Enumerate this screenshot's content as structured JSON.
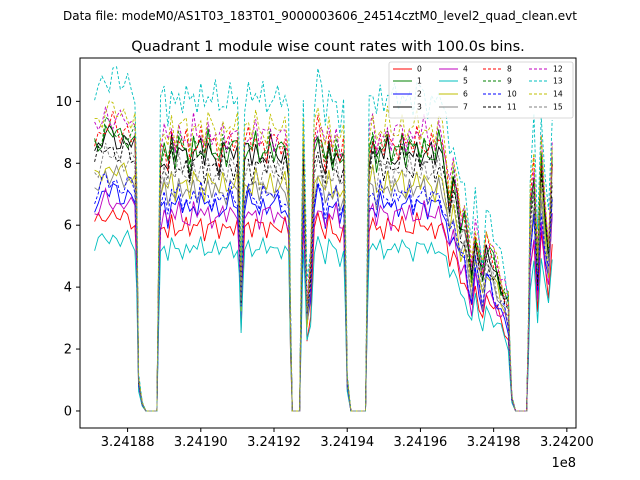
{
  "chart_data": {
    "type": "line",
    "suptitle": "Data file: modeM0/AS1T03_183T01_9000003606_24514cztM0_level2_quad_clean.evt",
    "title": "Quadrant 1 module wise count rates with 100.0s bins.",
    "xlabel": "",
    "ylabel": "",
    "x_offset_label": "1e8",
    "xlim": [
      3.241867,
      3.2420025
    ],
    "ylim": [
      -0.55,
      11.4
    ],
    "xticks": [
      3.24188,
      3.2419,
      3.24192,
      3.24194,
      3.24196,
      3.24198,
      3.242
    ],
    "xtick_labels": [
      "3.24188",
      "3.24190",
      "3.24192",
      "3.24194",
      "3.24196",
      "3.24198",
      "3.24200"
    ],
    "yticks": [
      0,
      2,
      4,
      6,
      8,
      10
    ],
    "ytick_labels": [
      "0",
      "2",
      "4",
      "6",
      "8",
      "10"
    ],
    "grid": false,
    "legend_position": "top-right",
    "legend_columns": 4,
    "series_styles": [
      {
        "name": "0",
        "color": "#ff0000",
        "dash": "solid",
        "amp": 0.58,
        "base": 6.0
      },
      {
        "name": "1",
        "color": "#008000",
        "dash": "solid",
        "amp": 0.82,
        "base": 8.5
      },
      {
        "name": "2",
        "color": "#0000ff",
        "dash": "solid",
        "amp": 0.66,
        "base": 6.7
      },
      {
        "name": "3",
        "color": "#000000",
        "dash": "solid",
        "amp": 0.8,
        "base": 8.4
      },
      {
        "name": "4",
        "color": "#bf00bf",
        "dash": "solid",
        "amp": 0.63,
        "base": 6.4
      },
      {
        "name": "5",
        "color": "#00bfbf",
        "dash": "solid",
        "amp": 0.5,
        "base": 5.3
      },
      {
        "name": "6",
        "color": "#bfbf00",
        "dash": "solid",
        "amp": 0.72,
        "base": 7.4
      },
      {
        "name": "7",
        "color": "#808080",
        "dash": "solid",
        "amp": 0.71,
        "base": 7.2
      },
      {
        "name": "8",
        "color": "#ff0000",
        "dash": "dashed",
        "amp": 0.84,
        "base": 8.7
      },
      {
        "name": "9",
        "color": "#008000",
        "dash": "dashed",
        "amp": 0.83,
        "base": 8.6
      },
      {
        "name": "10",
        "color": "#0000ff",
        "dash": "dashed",
        "amp": 0.67,
        "base": 7.0
      },
      {
        "name": "11",
        "color": "#000000",
        "dash": "dashed",
        "amp": 0.78,
        "base": 8.0
      },
      {
        "name": "12",
        "color": "#bf00bf",
        "dash": "dashed",
        "amp": 0.86,
        "base": 9.0
      },
      {
        "name": "13",
        "color": "#00bfbf",
        "dash": "dashed",
        "amp": 0.97,
        "base": 10.2
      },
      {
        "name": "14",
        "color": "#bfbf00",
        "dash": "dashed",
        "amp": 0.88,
        "base": 9.2
      },
      {
        "name": "15",
        "color": "#808080",
        "dash": "dashed",
        "amp": 0.75,
        "base": 7.8
      }
    ],
    "envelope_points": [
      [
        3.241871,
        1.0
      ],
      [
        3.241872,
        1.02
      ],
      [
        3.241873,
        1.04
      ],
      [
        3.241874,
        1.07
      ],
      [
        3.241875,
        1.05
      ],
      [
        3.241876,
        1.06
      ],
      [
        3.241877,
        1.05
      ],
      [
        3.241878,
        1.03
      ],
      [
        3.241879,
        1.04
      ],
      [
        3.24188,
        1.05
      ],
      [
        3.241881,
        1.03
      ],
      [
        3.241882,
        1.02
      ],
      [
        3.2418825,
        0.75
      ],
      [
        3.241883,
        0.12
      ],
      [
        3.241884,
        0.03
      ],
      [
        3.241885,
        0.0
      ],
      [
        3.241886,
        0.0
      ],
      [
        3.241887,
        0.0
      ],
      [
        3.241888,
        0.0
      ],
      [
        3.2418885,
        0.55
      ],
      [
        3.241889,
        0.95
      ],
      [
        3.24189,
        1.0
      ],
      [
        3.241891,
        0.93
      ],
      [
        3.241892,
        1.03
      ],
      [
        3.241893,
        0.96
      ],
      [
        3.241894,
        1.02
      ],
      [
        3.241895,
        0.97
      ],
      [
        3.241896,
        1.0
      ],
      [
        3.241897,
        0.94
      ],
      [
        3.241898,
        1.02
      ],
      [
        3.241899,
        0.98
      ],
      [
        3.2419,
        1.03
      ],
      [
        3.241901,
        0.96
      ],
      [
        3.241902,
        1.02
      ],
      [
        3.241903,
        0.97
      ],
      [
        3.241904,
        1.0
      ],
      [
        3.241905,
        0.95
      ],
      [
        3.241906,
        1.01
      ],
      [
        3.241907,
        0.97
      ],
      [
        3.241908,
        1.02
      ],
      [
        3.241909,
        0.98
      ],
      [
        3.24191,
        1.0
      ],
      [
        3.2419105,
        0.8
      ],
      [
        3.241911,
        0.45
      ],
      [
        3.2419115,
        0.78
      ],
      [
        3.241912,
        0.98
      ],
      [
        3.241913,
        1.02
      ],
      [
        3.241914,
        0.97
      ],
      [
        3.241915,
        1.02
      ],
      [
        3.241916,
        0.96
      ],
      [
        3.241917,
        1.01
      ],
      [
        3.241918,
        0.97
      ],
      [
        3.241919,
        1.02
      ],
      [
        3.24192,
        0.98
      ],
      [
        3.241921,
        1.0
      ],
      [
        3.241922,
        0.97
      ],
      [
        3.241923,
        1.0
      ],
      [
        3.241924,
        0.92
      ],
      [
        3.2419245,
        0.35
      ],
      [
        3.241925,
        0.0
      ],
      [
        3.241926,
        0.0
      ],
      [
        3.241927,
        0.0
      ],
      [
        3.2419275,
        0.55
      ],
      [
        3.241928,
        1.0
      ],
      [
        3.2419285,
        0.72
      ],
      [
        3.241929,
        0.4
      ],
      [
        3.24193,
        0.55
      ],
      [
        3.241931,
        0.98
      ],
      [
        3.241932,
        1.05
      ],
      [
        3.241933,
        1.0
      ],
      [
        3.241934,
        0.92
      ],
      [
        3.241935,
        1.02
      ],
      [
        3.241936,
        0.96
      ],
      [
        3.241937,
        1.0
      ],
      [
        3.241938,
        0.92
      ],
      [
        3.241939,
        0.97
      ],
      [
        3.2419395,
        0.6
      ],
      [
        3.24194,
        0.12
      ],
      [
        3.241941,
        0.0
      ],
      [
        3.241942,
        0.0
      ],
      [
        3.241943,
        0.0
      ],
      [
        3.241944,
        0.0
      ],
      [
        3.241945,
        0.0
      ],
      [
        3.2419455,
        0.55
      ],
      [
        3.241946,
        0.98
      ],
      [
        3.241947,
        1.03
      ],
      [
        3.241948,
        0.95
      ],
      [
        3.241949,
        1.02
      ],
      [
        3.24195,
        0.97
      ],
      [
        3.241951,
        1.02
      ],
      [
        3.241952,
        0.96
      ],
      [
        3.241953,
        1.0
      ],
      [
        3.241954,
        0.98
      ],
      [
        3.241955,
        1.03
      ],
      [
        3.241956,
        0.97
      ],
      [
        3.241957,
        1.01
      ],
      [
        3.241958,
        0.96
      ],
      [
        3.241959,
        1.02
      ],
      [
        3.24196,
        0.98
      ],
      [
        3.241961,
        1.02
      ],
      [
        3.241962,
        0.97
      ],
      [
        3.241963,
        1.0
      ],
      [
        3.241964,
        0.96
      ],
      [
        3.241965,
        1.02
      ],
      [
        3.241966,
        0.97
      ],
      [
        3.241967,
        0.9
      ],
      [
        3.241968,
        0.8
      ],
      [
        3.241969,
        0.88
      ],
      [
        3.24197,
        0.8
      ],
      [
        3.241971,
        0.7
      ],
      [
        3.241972,
        0.72
      ],
      [
        3.241973,
        0.62
      ],
      [
        3.241974,
        0.52
      ],
      [
        3.241975,
        0.68
      ],
      [
        3.241976,
        0.58
      ],
      [
        3.241977,
        0.5
      ],
      [
        3.241978,
        0.62
      ],
      [
        3.241979,
        0.6
      ],
      [
        3.24198,
        0.55
      ],
      [
        3.241981,
        0.52
      ],
      [
        3.241982,
        0.48
      ],
      [
        3.241983,
        0.45
      ],
      [
        3.241984,
        0.4
      ],
      [
        3.2419845,
        0.2
      ],
      [
        3.241985,
        0.05
      ],
      [
        3.241986,
        0.0
      ],
      [
        3.241987,
        0.0
      ],
      [
        3.241988,
        0.0
      ],
      [
        3.241989,
        0.0
      ],
      [
        3.2419895,
        0.3
      ],
      [
        3.24199,
        0.75
      ],
      [
        3.241991,
        0.9
      ],
      [
        3.241992,
        0.55
      ],
      [
        3.241993,
        0.95
      ],
      [
        3.241994,
        0.75
      ],
      [
        3.241995,
        0.62
      ],
      [
        3.241996,
        0.95
      ]
    ]
  }
}
